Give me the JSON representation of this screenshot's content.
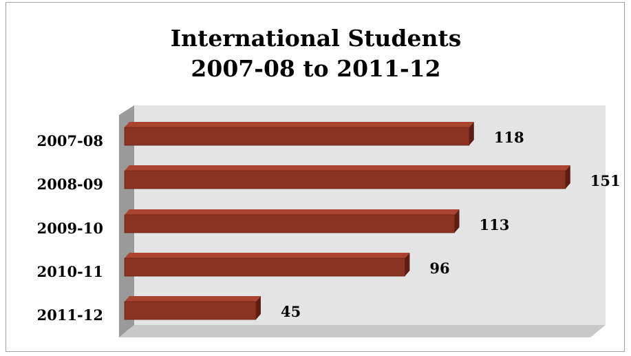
{
  "chart_data": {
    "type": "bar",
    "orientation": "horizontal",
    "three_d": true,
    "title_lines": [
      "International Students",
      "2007-08 to 2011-12"
    ],
    "categories": [
      "2007-08",
      "2008-09",
      "2009-10",
      "2010-11",
      "2011-12"
    ],
    "values": [
      118,
      151,
      113,
      96,
      45
    ],
    "data_labels": [
      "118",
      "151",
      "113",
      "96",
      "45"
    ],
    "xlim": [
      0,
      160
    ],
    "grid": false,
    "legend": "none",
    "colors": {
      "bar_front": "#8b3323",
      "bar_top": "#a8442f",
      "bar_side": "#5e1d12",
      "plot_back": "#e4e4e4",
      "plot_floor": "#c8c8c8",
      "plot_wall": "#9a9a9a"
    }
  }
}
